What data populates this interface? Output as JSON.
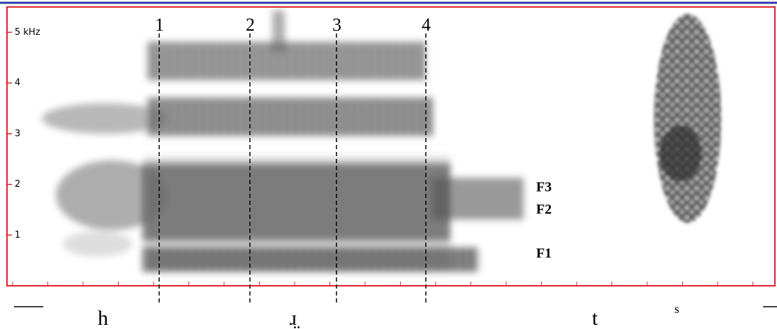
{
  "chart_data": {
    "type": "spectrogram",
    "ylim": [
      0,
      5.5
    ],
    "yticks": [
      1,
      2,
      3,
      4,
      {
        "value": 5,
        "label": "5 kHz"
      }
    ],
    "markers": [
      "1",
      "2",
      "3",
      "4"
    ],
    "formants": [
      "F3",
      "F2",
      "F1"
    ],
    "segments": [
      "h",
      "ɹ̤",
      "t",
      "s"
    ]
  }
}
